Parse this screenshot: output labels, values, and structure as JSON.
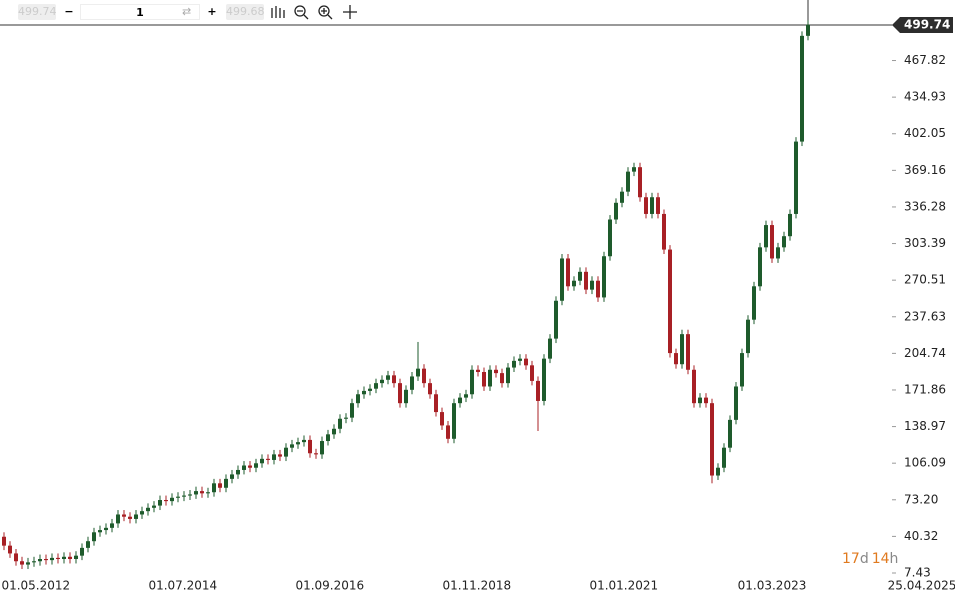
{
  "toolbar": {
    "sell": "499.74",
    "quantity": "1",
    "buy": "499.68"
  },
  "countdown": {
    "days": "17",
    "days_unit": "d",
    "hours": "14",
    "hours_unit": "h"
  },
  "chart_data": {
    "type": "candlestick",
    "up_color": "#1e5b2c",
    "down_color": "#a82025",
    "xlim": [
      -0.667,
      158.5
    ],
    "ylim": [
      7.43,
      499.74
    ],
    "xticks": [
      {
        "value": 5.3,
        "label": "01.05.2012"
      },
      {
        "value": 29.8,
        "label": "01.07.2014"
      },
      {
        "value": 54.3,
        "label": "01.09.2016"
      },
      {
        "value": 78.8,
        "label": "01.11.2018"
      },
      {
        "value": 103.3,
        "label": "01.01.2021"
      },
      {
        "value": 128,
        "label": "01.03.2023"
      },
      {
        "value": 153,
        "label": "25.04.2025"
      }
    ],
    "yticks": [
      7.43,
      40.32,
      {
        "value": 73.2,
        "label": "73.20"
      },
      106.09,
      138.97,
      171.86,
      204.74,
      237.63,
      270.51,
      303.39,
      336.28,
      369.16,
      402.05,
      434.93,
      467.82,
      499.74
    ],
    "open": [
      40,
      32,
      25,
      18,
      15,
      17,
      18,
      20,
      19,
      21,
      20,
      22,
      20,
      23,
      30,
      36,
      44,
      46,
      48,
      52,
      60,
      58,
      56,
      60,
      63,
      66,
      68,
      73,
      72,
      75,
      76,
      77,
      78,
      81,
      79,
      80,
      88,
      84,
      92,
      96,
      100,
      104,
      102,
      106,
      110,
      109,
      114,
      112,
      120,
      123,
      125,
      127,
      115,
      114,
      126,
      132,
      137,
      146,
      147,
      160,
      168,
      171,
      173,
      178,
      181,
      185,
      178,
      160,
      172,
      184,
      191,
      178,
      168,
      152,
      140,
      128,
      160,
      165,
      168,
      190,
      188,
      175,
      190,
      187,
      178,
      192,
      198,
      200,
      194,
      180,
      162,
      200,
      218,
      252,
      290,
      265,
      270,
      278,
      262,
      270,
      255,
      292,
      325,
      340,
      350,
      368,
      372,
      345,
      330,
      345,
      330,
      298,
      205,
      195,
      222,
      190,
      160,
      165,
      160,
      95,
      102,
      120,
      145,
      175,
      205,
      235,
      265,
      300,
      320,
      290,
      300,
      310,
      330,
      395,
      490
    ],
    "high": [
      44,
      36,
      29,
      22,
      21,
      22,
      24,
      24,
      25,
      25,
      26,
      26,
      27,
      34,
      40,
      48,
      50,
      52,
      56,
      64,
      64,
      62,
      64,
      67,
      70,
      72,
      77,
      77,
      79,
      80,
      81,
      82,
      85,
      85,
      84,
      92,
      92,
      96,
      100,
      104,
      108,
      108,
      110,
      114,
      114,
      118,
      118,
      124,
      127,
      129,
      131,
      131,
      119,
      130,
      136,
      141,
      150,
      151,
      164,
      172,
      175,
      177,
      182,
      185,
      189,
      189,
      182,
      176,
      188,
      215,
      195,
      182,
      172,
      156,
      144,
      164,
      169,
      172,
      194,
      194,
      192,
      194,
      194,
      191,
      196,
      202,
      204,
      204,
      198,
      184,
      204,
      222,
      256,
      294,
      294,
      274,
      282,
      282,
      274,
      274,
      296,
      329,
      344,
      354,
      372,
      376,
      376,
      349,
      349,
      349,
      334,
      302,
      209,
      226,
      226,
      194,
      169,
      169,
      164,
      106,
      124,
      149,
      179,
      209,
      239,
      269,
      304,
      324,
      324,
      304,
      314,
      334,
      399,
      494,
      504
    ],
    "low": [
      28,
      21,
      14,
      11,
      11,
      13,
      14,
      15,
      15,
      16,
      16,
      16,
      16,
      19,
      26,
      32,
      40,
      42,
      44,
      48,
      54,
      52,
      52,
      56,
      59,
      62,
      64,
      68,
      68,
      71,
      72,
      73,
      74,
      75,
      75,
      76,
      80,
      80,
      88,
      92,
      96,
      98,
      98,
      102,
      105,
      105,
      108,
      108,
      116,
      119,
      121,
      111,
      110,
      110,
      122,
      128,
      133,
      142,
      143,
      156,
      164,
      167,
      169,
      174,
      177,
      174,
      156,
      156,
      168,
      180,
      174,
      164,
      148,
      136,
      124,
      124,
      156,
      161,
      164,
      184,
      171,
      171,
      183,
      174,
      174,
      188,
      194,
      190,
      176,
      135,
      158,
      196,
      214,
      248,
      261,
      261,
      266,
      258,
      258,
      251,
      251,
      288,
      321,
      336,
      346,
      364,
      341,
      326,
      326,
      326,
      294,
      201,
      191,
      191,
      186,
      156,
      156,
      156,
      88,
      91,
      98,
      116,
      141,
      171,
      201,
      231,
      261,
      296,
      286,
      286,
      296,
      306,
      326,
      391,
      486
    ],
    "close": [
      32,
      25,
      18,
      15,
      17,
      18,
      20,
      19,
      21,
      20,
      22,
      20,
      23,
      30,
      36,
      44,
      46,
      48,
      52,
      60,
      58,
      56,
      60,
      63,
      66,
      68,
      73,
      72,
      75,
      76,
      77,
      78,
      81,
      79,
      80,
      88,
      84,
      92,
      96,
      100,
      104,
      102,
      106,
      110,
      109,
      114,
      112,
      120,
      123,
      125,
      127,
      115,
      114,
      126,
      132,
      137,
      146,
      147,
      160,
      168,
      171,
      173,
      178,
      181,
      185,
      178,
      160,
      172,
      184,
      191,
      178,
      168,
      152,
      140,
      128,
      160,
      165,
      168,
      190,
      188,
      175,
      190,
      187,
      178,
      192,
      198,
      200,
      194,
      180,
      162,
      200,
      218,
      252,
      290,
      265,
      270,
      278,
      262,
      270,
      255,
      292,
      325,
      340,
      350,
      368,
      372,
      345,
      330,
      345,
      330,
      298,
      205,
      195,
      222,
      190,
      160,
      165,
      160,
      95,
      102,
      120,
      145,
      175,
      205,
      235,
      265,
      300,
      320,
      290,
      300,
      310,
      330,
      395,
      490,
      500
    ]
  }
}
